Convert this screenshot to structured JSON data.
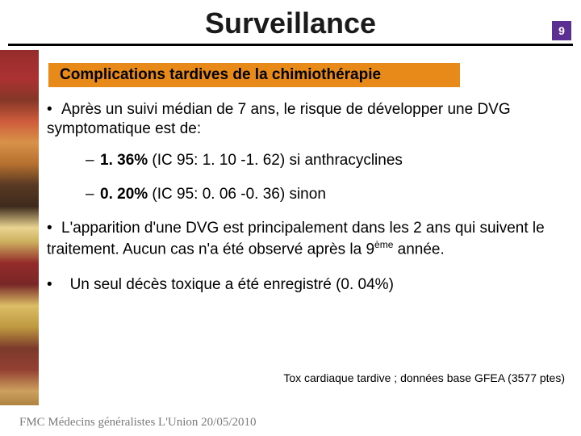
{
  "title": "Surveillance",
  "page_number": "9",
  "colors": {
    "badge_bg": "#5b2e91",
    "subtitle_bg": "#e88a1a",
    "rule": "#000000",
    "footer_text": "#7a7a7a"
  },
  "subtitle": "Complications tardives de la chimiothérapie",
  "bullets": {
    "b1": "Après un suivi médian de 7 ans, le risque de développer une DVG symptomatique est de:",
    "s1_bold": "1. 36%",
    "s1_rest": " (IC 95: 1. 10 -1. 62) si anthracyclines",
    "s2_bold": "0. 20%",
    "s2_rest": " (IC 95: 0. 06 -0. 36) sinon",
    "b2_a": "L'apparition d'une DVG est principalement dans les 2 ans qui suivent le traitement. Aucun cas n'a été observé après la 9",
    "b2_sup": "ème",
    "b2_b": " année.",
    "b3": "Un seul décès toxique a été enregistré (0. 04%)"
  },
  "source": "Tox cardiaque tardive ; données base GFEA (3577 ptes)",
  "footer": "FMC Médecins généralistes L'Union 20/05/2010"
}
